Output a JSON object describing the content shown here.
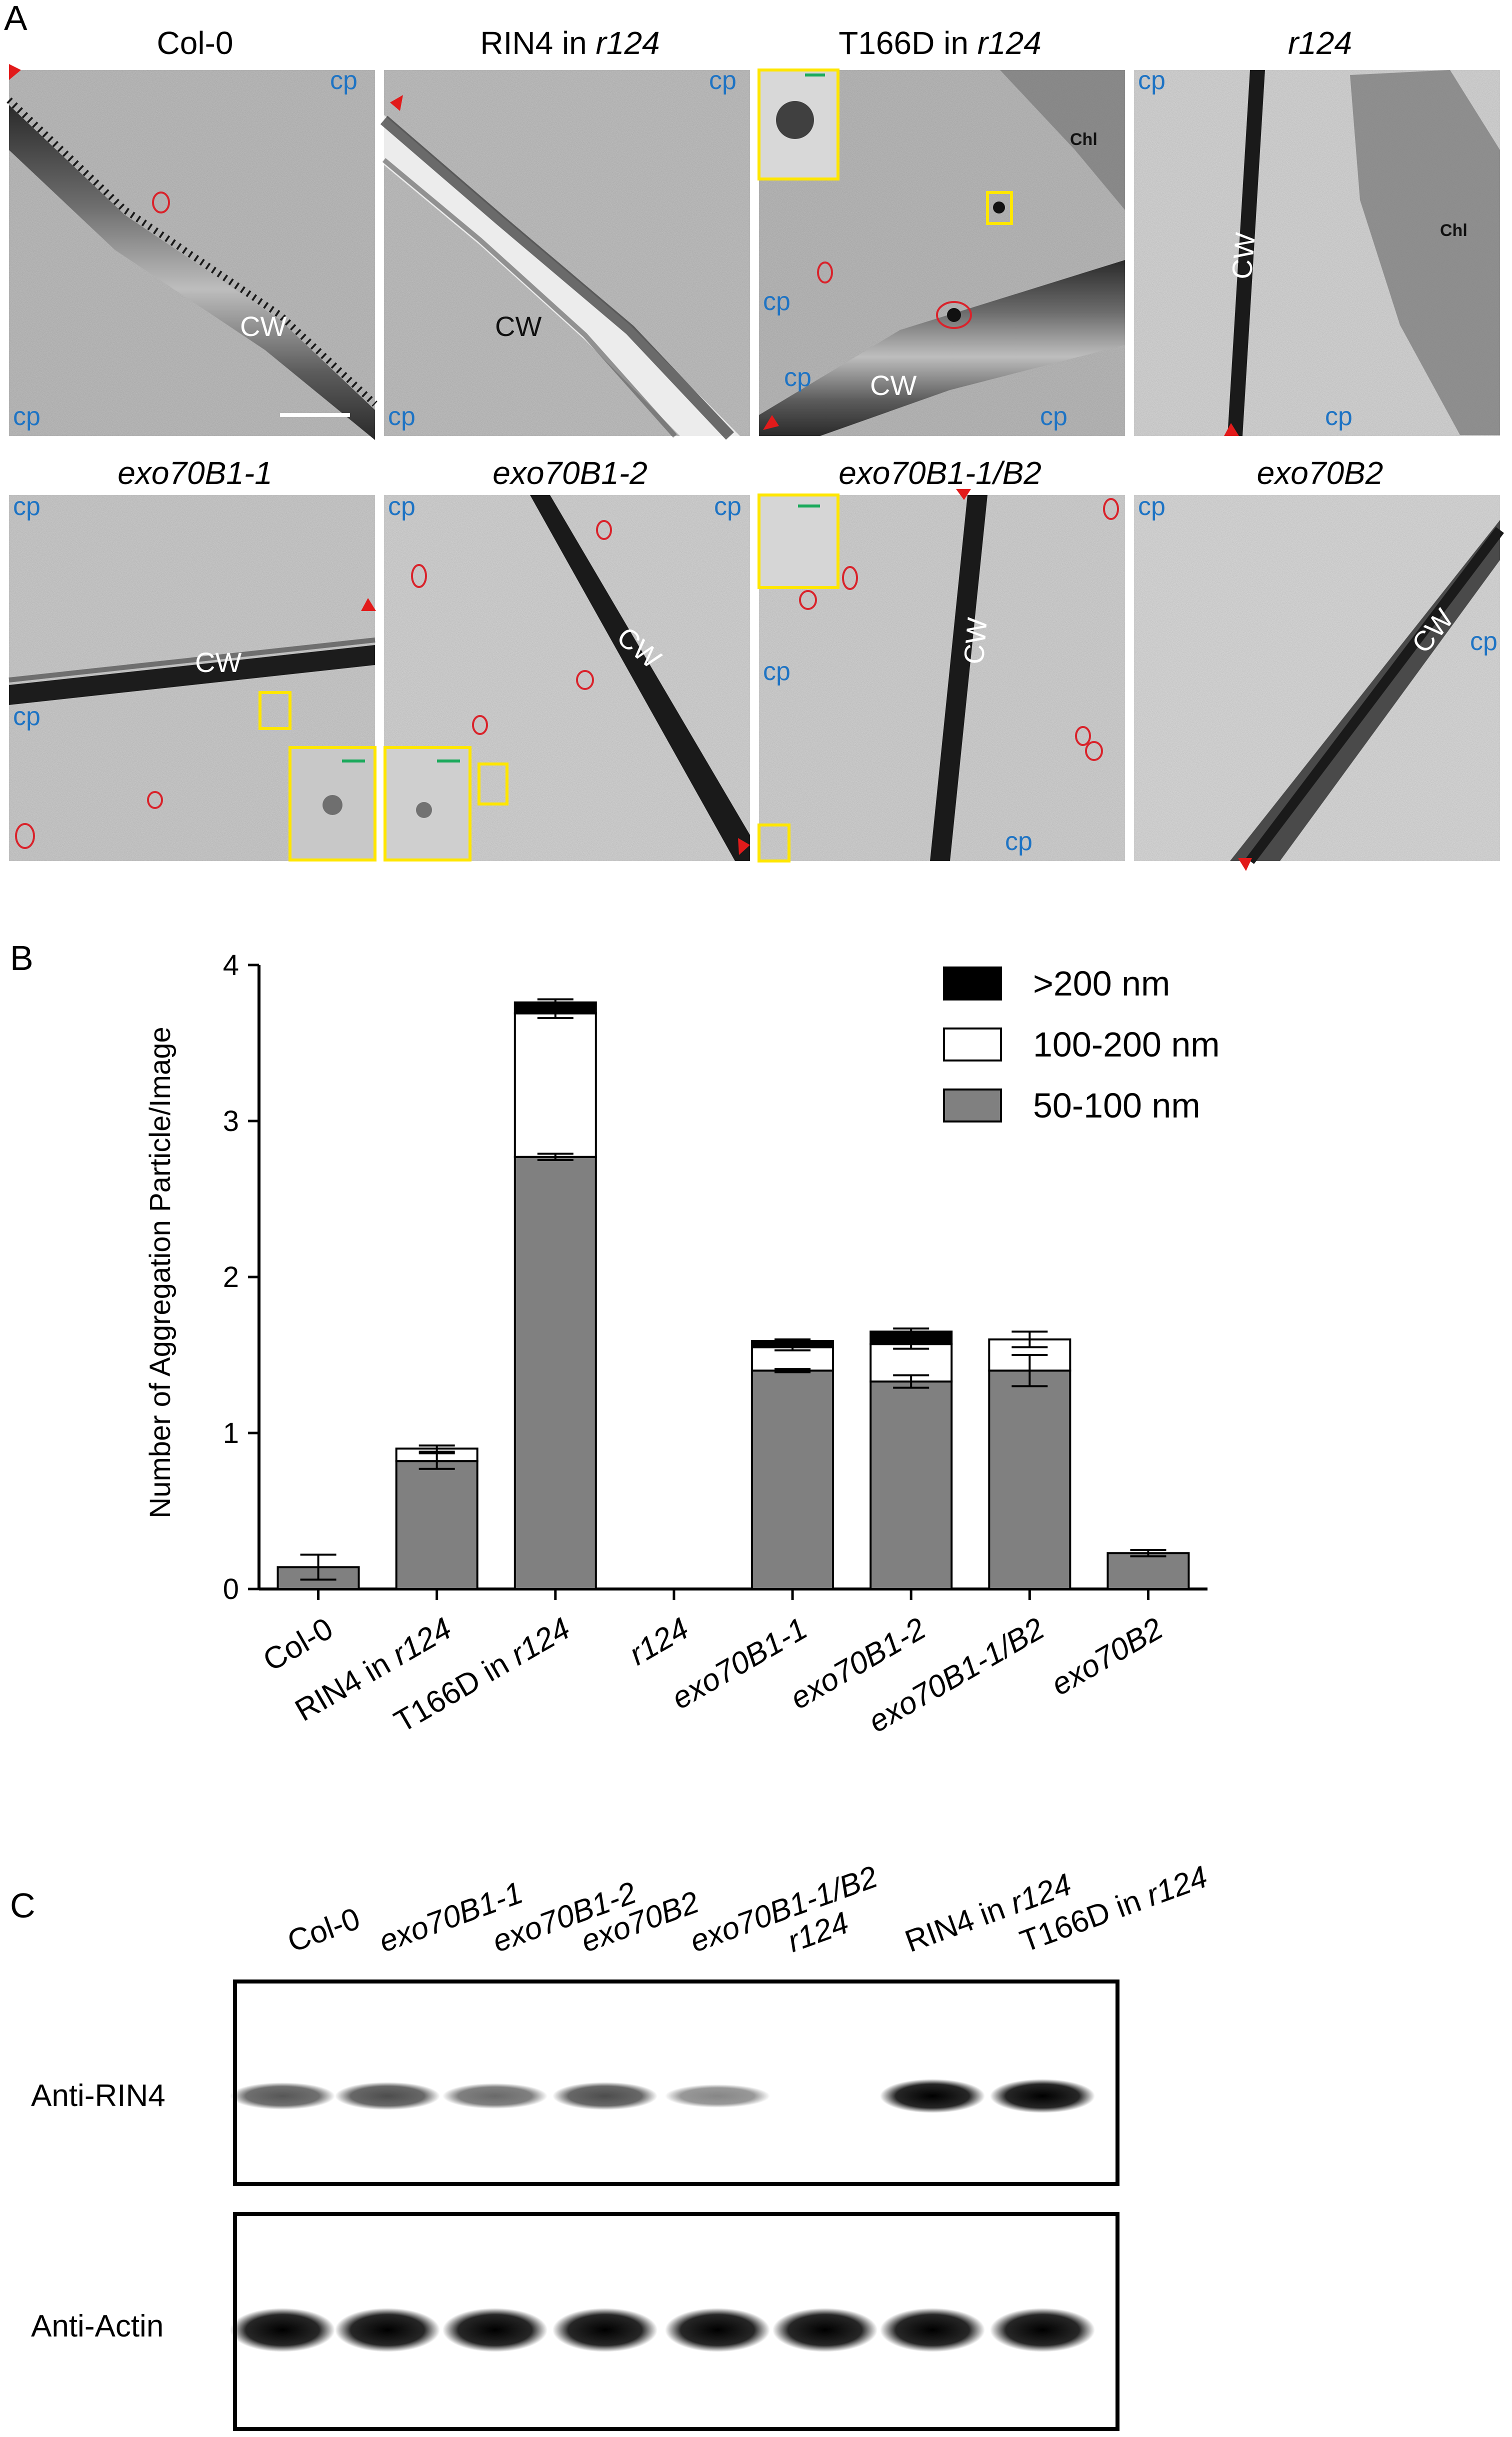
{
  "panels": {
    "a_label": "A",
    "b_label": "B",
    "c_label": "C"
  },
  "micrographs": {
    "row1": [
      {
        "title": "Col-0",
        "title_suffix": "",
        "title_italic": false
      },
      {
        "title": "RIN4 in ",
        "title_suffix": "r124",
        "title_italic": false
      },
      {
        "title": "T166D in ",
        "title_suffix": "r124",
        "title_italic": false
      },
      {
        "title": "",
        "title_suffix": "r124",
        "title_italic": true
      }
    ],
    "row2": [
      {
        "title": "exo70B1-1"
      },
      {
        "title": "exo70B1-2"
      },
      {
        "title": "exo70B1-1/B2"
      },
      {
        "title": "exo70B2"
      }
    ],
    "labels": {
      "cp": "cp",
      "cw": "CW",
      "chl": "Chl"
    },
    "colors": {
      "cp_label": "#1f74c4",
      "particle_circle": "#d9232b",
      "inset_box": "#ffe600",
      "scale_bar_inset": "#1aa95b",
      "arrowhead": "#e21b1b"
    }
  },
  "chart_data": {
    "type": "bar",
    "stacked": true,
    "ylabel": "Number of Aggregation Particle/Image",
    "xlabel": "",
    "ylim": [
      0,
      4
    ],
    "yticks": [
      0,
      1,
      2,
      3,
      4
    ],
    "categories": [
      "Col-0",
      "RIN4 in r124",
      "T166D in r124",
      "r124",
      "exo70B1-1",
      "exo70B1-2",
      "exo70B1-1/B2",
      "exo70B2"
    ],
    "category_labels": [
      {
        "roman": "Col-0",
        "italic": ""
      },
      {
        "roman": "RIN4 in ",
        "italic": "r124"
      },
      {
        "roman": "T166D in ",
        "italic": "r124"
      },
      {
        "roman": "",
        "italic": "r124"
      },
      {
        "roman": "",
        "italic": "exo70B1-1"
      },
      {
        "roman": "",
        "italic": "exo70B1-2"
      },
      {
        "roman": "",
        "italic": "exo70B1-1/B2"
      },
      {
        "roman": "",
        "italic": "exo70B2"
      }
    ],
    "series": [
      {
        "name": "50-100 nm",
        "color": "#808080",
        "values": [
          0.14,
          0.82,
          2.77,
          0,
          1.4,
          1.33,
          1.4,
          0.23
        ],
        "errors": [
          0.08,
          0.05,
          0.02,
          0,
          0.01,
          0.04,
          0.1,
          0.02
        ]
      },
      {
        "name": "100-200 nm",
        "color": "#ffffff",
        "values": [
          0,
          0.08,
          0.92,
          0,
          0.15,
          0.24,
          0.2,
          0
        ],
        "errors": [
          0,
          0.02,
          0.03,
          0,
          0.02,
          0.03,
          0.05,
          0
        ]
      },
      {
        "name": ">200 nm",
        "color": "#000000",
        "values": [
          0,
          0,
          0.07,
          0,
          0.04,
          0.08,
          0,
          0
        ],
        "errors": [
          0,
          0,
          0.02,
          0,
          0.01,
          0.02,
          0,
          0
        ]
      }
    ],
    "legend_placement": "top-right",
    "grid": false
  },
  "western": {
    "lanes": [
      {
        "roman": "Col-0",
        "italic": ""
      },
      {
        "roman": "",
        "italic": "exo70B1-1"
      },
      {
        "roman": "",
        "italic": "exo70B1-2"
      },
      {
        "roman": "",
        "italic": "exo70B2"
      },
      {
        "roman": "",
        "italic": "exo70B1-1/B2"
      },
      {
        "roman": "",
        "italic": "r124"
      },
      {
        "roman": "RIN4 in ",
        "italic": "r124"
      },
      {
        "roman": "T166D in ",
        "italic": "r124"
      }
    ],
    "blots": [
      {
        "antibody": "Anti-RIN4",
        "band_intensity": [
          0.55,
          0.6,
          0.45,
          0.6,
          0.3,
          0,
          1,
          1
        ]
      },
      {
        "antibody": "Anti-Actin",
        "band_intensity": [
          1,
          1,
          1,
          1,
          1,
          1,
          1,
          1
        ]
      }
    ]
  }
}
